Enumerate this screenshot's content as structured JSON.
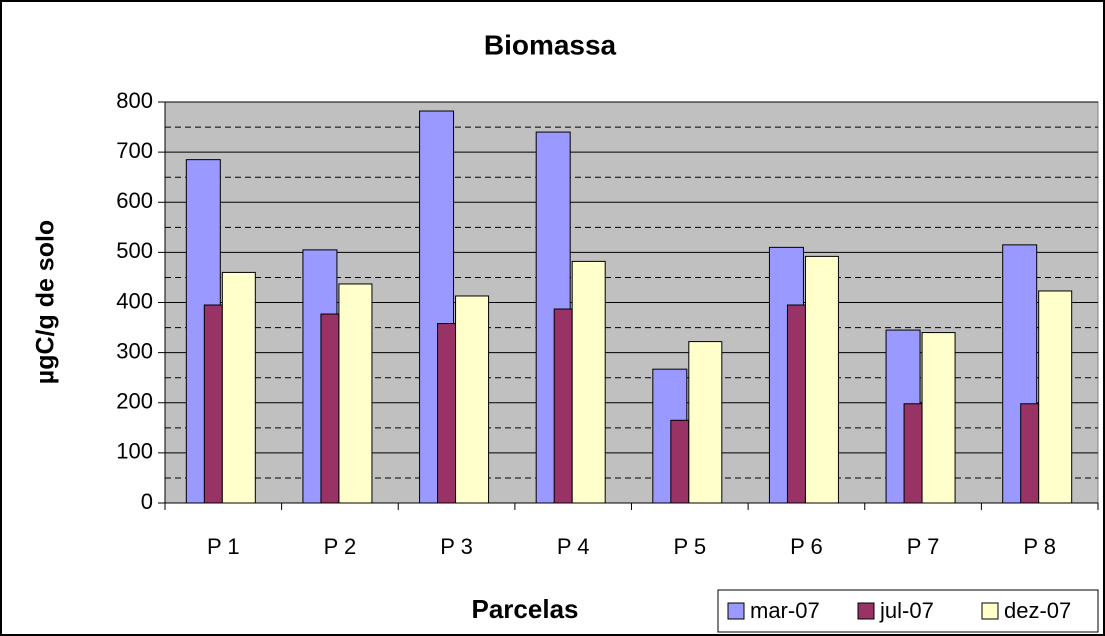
{
  "chart_data": {
    "type": "bar",
    "title": "Biomassa",
    "x_label": "Parcelas",
    "y_label": "µgC/g de solo",
    "categories": [
      "P 1",
      "P 2",
      "P 3",
      "P 4",
      "P 5",
      "P 6",
      "P 7",
      "P 8"
    ],
    "series": [
      {
        "name": "mar-07",
        "color": "#9999ff",
        "values": [
          685,
          505,
          782,
          740,
          267,
          510,
          345,
          515
        ]
      },
      {
        "name": "jul-07",
        "color": "#993366",
        "values": [
          395,
          377,
          358,
          387,
          165,
          395,
          198,
          198
        ]
      },
      {
        "name": "dez-07",
        "color": "#ffffcc",
        "values": [
          460,
          437,
          413,
          482,
          322,
          492,
          340,
          423
        ]
      }
    ],
    "ylim": [
      0,
      800
    ],
    "yticks": [
      0,
      100,
      200,
      300,
      400,
      500,
      600,
      700,
      800
    ],
    "minor_grid": [
      50,
      150,
      250,
      350,
      450,
      550,
      650,
      750
    ],
    "grid": true,
    "legend": "bottom-right"
  }
}
